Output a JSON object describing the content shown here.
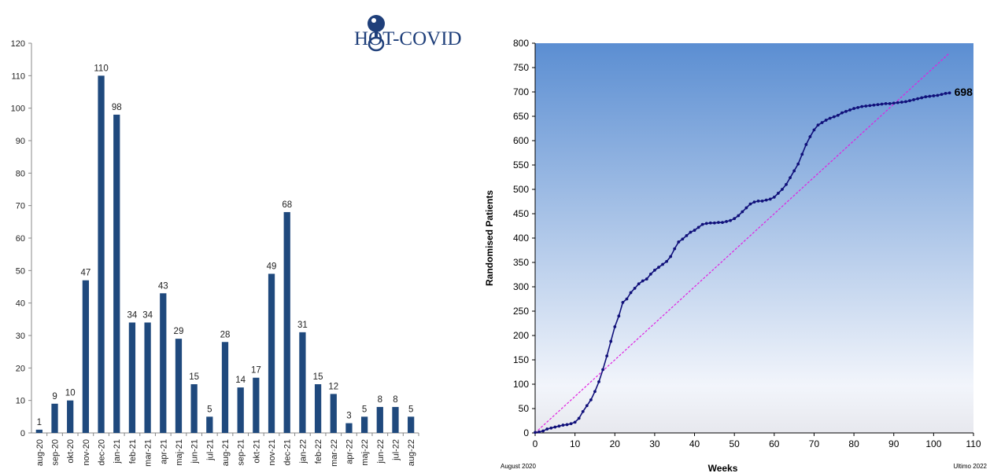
{
  "logo": {
    "text": "HOT-COVID"
  },
  "chart_data": [
    {
      "type": "bar",
      "categories": [
        "aug-20",
        "sep-20",
        "okt-20",
        "nov-20",
        "dec-20",
        "jan-21",
        "feb-21",
        "mar-21",
        "apr-21",
        "maj-21",
        "jun-21",
        "jul-21",
        "aug-21",
        "sep-21",
        "okt-21",
        "nov-21",
        "dec-21",
        "jan-22",
        "feb-22",
        "mar-22",
        "apr-22",
        "maj-22",
        "jun-22",
        "jul-22",
        "aug-22"
      ],
      "values": [
        1,
        9,
        10,
        47,
        110,
        98,
        34,
        34,
        43,
        29,
        15,
        5,
        28,
        14,
        17,
        49,
        68,
        31,
        15,
        12,
        3,
        5,
        8,
        8,
        5
      ],
      "ylim": [
        0,
        120
      ],
      "yticks": [
        0,
        10,
        20,
        30,
        40,
        50,
        60,
        70,
        80,
        90,
        100,
        110,
        120
      ],
      "bar_color": "#1f497d",
      "grid": false,
      "legend": false
    },
    {
      "type": "line",
      "xlabel": "Weeks",
      "ylabel": "Randomised Patients",
      "xlim": [
        0,
        110
      ],
      "ylim": [
        0,
        800
      ],
      "xticks": [
        0,
        10,
        20,
        30,
        40,
        50,
        60,
        70,
        80,
        90,
        100,
        110
      ],
      "yticks": [
        0,
        50,
        100,
        150,
        200,
        250,
        300,
        350,
        400,
        450,
        500,
        550,
        600,
        650,
        700,
        750,
        800
      ],
      "start_label": "August 2020",
      "end_label": "Ultimo 2022",
      "end_value_label": "698",
      "series": [
        {
          "color": "#10107a",
          "x": [
            0,
            1,
            2,
            3,
            4,
            5,
            6,
            7,
            8,
            9,
            10,
            11,
            12,
            13,
            14,
            15,
            16,
            17,
            18,
            19,
            20,
            21,
            22,
            23,
            24,
            25,
            26,
            27,
            28,
            29,
            30,
            31,
            32,
            33,
            34,
            35,
            36,
            37,
            38,
            39,
            40,
            41,
            42,
            43,
            44,
            45,
            46,
            47,
            48,
            49,
            50,
            51,
            52,
            53,
            54,
            55,
            56,
            57,
            58,
            59,
            60,
            61,
            62,
            63,
            64,
            65,
            66,
            67,
            68,
            69,
            70,
            71,
            72,
            73,
            74,
            75,
            76,
            77,
            78,
            79,
            80,
            81,
            82,
            83,
            84,
            85,
            86,
            87,
            88,
            89,
            90,
            91,
            92,
            93,
            94,
            95,
            96,
            97,
            98,
            99,
            100,
            101,
            102,
            103,
            104
          ],
          "y": [
            1,
            2,
            4,
            8,
            10,
            12,
            14,
            16,
            17,
            19,
            22,
            30,
            44,
            56,
            68,
            85,
            105,
            130,
            158,
            188,
            218,
            240,
            268,
            275,
            288,
            297,
            306,
            312,
            316,
            326,
            334,
            340,
            346,
            352,
            362,
            378,
            392,
            398,
            405,
            412,
            416,
            422,
            428,
            430,
            431,
            431,
            432,
            432,
            434,
            436,
            440,
            446,
            454,
            462,
            470,
            474,
            476,
            476,
            478,
            480,
            484,
            492,
            500,
            510,
            524,
            538,
            552,
            572,
            592,
            608,
            622,
            632,
            637,
            642,
            646,
            649,
            652,
            657,
            660,
            663,
            666,
            668,
            670,
            671,
            672,
            673,
            674,
            675,
            676,
            676,
            677,
            678,
            679,
            680,
            682,
            684,
            686,
            688,
            690,
            691,
            692,
            693,
            695,
            697,
            698
          ]
        },
        {
          "color": "#e020e0",
          "dashed": true,
          "x": [
            0,
            104
          ],
          "y": [
            0,
            780
          ]
        }
      ],
      "background_gradient": [
        "#5b8ed2",
        "#f2f5fb",
        "#e7e8ee"
      ],
      "grid": false,
      "legend": false
    }
  ]
}
